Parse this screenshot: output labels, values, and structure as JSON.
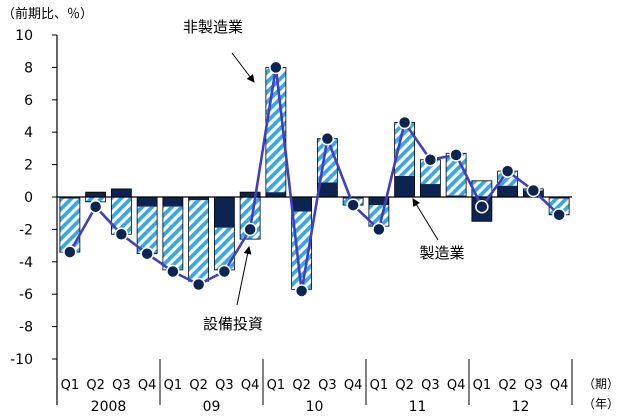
{
  "chart_data": {
    "type": "bar",
    "unit_label": "（前期比、％）",
    "period_label": "（期）",
    "year_label": "（年）",
    "ylim": [
      -10,
      10
    ],
    "y_ticks": [
      10,
      8,
      6,
      4,
      2,
      0,
      -2,
      -4,
      -6,
      -8,
      -10
    ],
    "categories": [
      "Q1",
      "Q2",
      "Q3",
      "Q4",
      "Q1",
      "Q2",
      "Q3",
      "Q4",
      "Q1",
      "Q2",
      "Q3",
      "Q4",
      "Q1",
      "Q2",
      "Q3",
      "Q4",
      "Q1",
      "Q2",
      "Q3",
      "Q4"
    ],
    "years": [
      {
        "label": "2008",
        "start": 0,
        "end": 3
      },
      {
        "label": "09",
        "start": 4,
        "end": 7
      },
      {
        "label": "10",
        "start": 8,
        "end": 11
      },
      {
        "label": "11",
        "start": 12,
        "end": 15
      },
      {
        "label": "12",
        "start": 16,
        "end": 19
      }
    ],
    "series": [
      {
        "name": "製造業",
        "style": "solid",
        "color": "#0d2450",
        "values": [
          -0.1,
          0.3,
          0.5,
          -0.6,
          -0.6,
          -0.2,
          -1.9,
          0.3,
          0.3,
          -0.9,
          0.9,
          -0.1,
          -0.5,
          1.3,
          0.8,
          0.1,
          -1.5,
          0.7,
          0.4,
          -0.1
        ]
      },
      {
        "name": "非製造業",
        "style": "hatched",
        "color": "#3aa7e2",
        "values": [
          -3.3,
          -0.3,
          -2.3,
          -2.9,
          -3.9,
          -5.0,
          -2.6,
          -2.6,
          7.7,
          -4.8,
          2.7,
          -0.4,
          -1.3,
          3.3,
          1.5,
          2.6,
          1.0,
          0.9,
          0.1,
          -1.0
        ]
      },
      {
        "name": "設備投資",
        "style": "line",
        "color": "#3f3fbf",
        "values": [
          -3.4,
          -0.6,
          -2.3,
          -3.5,
          -4.6,
          -5.4,
          -4.6,
          -2.0,
          8.0,
          -5.8,
          3.6,
          -0.5,
          -2.0,
          4.6,
          2.3,
          2.6,
          -0.6,
          1.6,
          0.4,
          -1.1
        ]
      }
    ],
    "annotations": [
      {
        "text": "非製造業",
        "target_series": 1,
        "target_index": 8
      },
      {
        "text": "製造業",
        "target_series": 0,
        "target_index": 13
      },
      {
        "text": "設備投資",
        "target_series": 2,
        "target_index": 7
      }
    ],
    "legend": "none",
    "grid": false
  }
}
